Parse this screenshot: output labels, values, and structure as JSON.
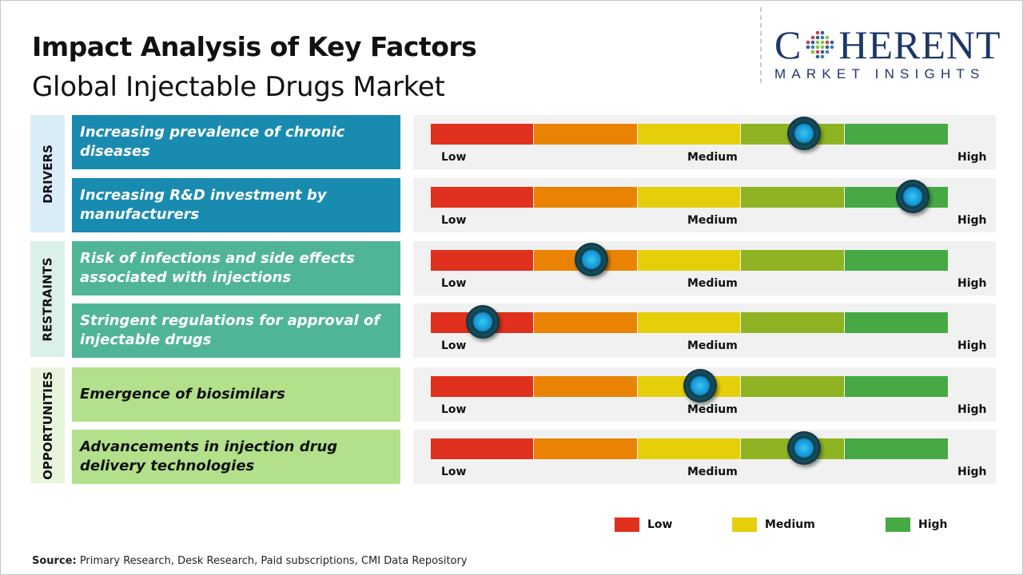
{
  "header": {
    "title": "Impact Analysis of Key Factors",
    "subtitle": "Global Injectable Drugs Market"
  },
  "logo": {
    "top_left": "C",
    "top_right": "HERENT",
    "bottom": "MARKET INSIGHTS"
  },
  "categories": [
    {
      "label": "DRIVERS",
      "color": "#1a8bb0",
      "tint": "#d8edf7",
      "text_color": "#ffffff"
    },
    {
      "label": "RESTRAINTS",
      "color": "#50b597",
      "tint": "#dcf0ea",
      "text_color": "#ffffff"
    },
    {
      "label": "OPPORTUNITIES",
      "color": "#b3e08a",
      "tint": "#e8f5dc",
      "text_color": "#111111"
    }
  ],
  "scale": {
    "low": "Low",
    "medium": "Medium",
    "high": "High",
    "colors": [
      "#e0301e",
      "#ea8304",
      "#e5cf0a",
      "#8fb322",
      "#46a944"
    ]
  },
  "chart_data": {
    "type": "bar",
    "title": "Impact Analysis of Key Factors",
    "subtitle": "Global Injectable Drugs Market",
    "scale_labels": [
      "Low",
      "Medium",
      "High"
    ],
    "rows": [
      {
        "category": "DRIVERS",
        "factor": "Increasing prevalence of chronic diseases",
        "impact": 0.72
      },
      {
        "category": "DRIVERS",
        "factor": "Increasing R&D investment by manufacturers",
        "impact": 0.93
      },
      {
        "category": "RESTRAINTS",
        "factor": "Risk of infections and side effects associated with injections",
        "impact": 0.31
      },
      {
        "category": "RESTRAINTS",
        "factor": "Stringent regulations for approval of injectable drugs",
        "impact": 0.1
      },
      {
        "category": "OPPORTUNITIES",
        "factor": "Emergence of biosimilars",
        "impact": 0.52
      },
      {
        "category": "OPPORTUNITIES",
        "factor": "Advancements in injection drug delivery technologies",
        "impact": 0.72
      }
    ]
  },
  "legend": [
    {
      "label": "Low",
      "color": "#e0301e"
    },
    {
      "label": "Medium",
      "color": "#e5cf0a"
    },
    {
      "label": "High",
      "color": "#46a944"
    }
  ],
  "source": {
    "label": "Source:",
    "text": " Primary Research, Desk Research, Paid subscriptions, CMI Data Repository"
  }
}
